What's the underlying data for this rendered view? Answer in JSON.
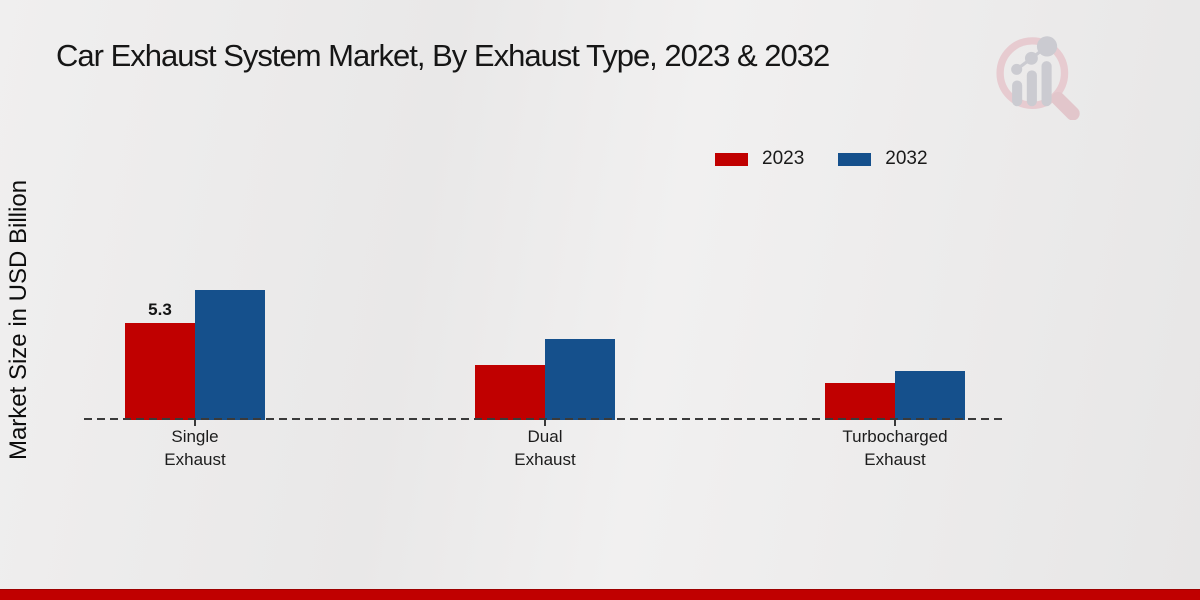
{
  "title": "Car Exhaust System Market, By Exhaust Type, 2023 & 2032",
  "ylabel": "Market Size in USD Billion",
  "legend": {
    "items": [
      {
        "label": "2023",
        "color": "#c00000"
      },
      {
        "label": "2032",
        "color": "#15508c"
      }
    ]
  },
  "colors": {
    "bar_2023": "#c00000",
    "bar_2032": "#15508c",
    "axis_dash": "#3a3a3a",
    "footer_bar": "#c00000",
    "watermark_ring": "#e7cbd0",
    "watermark_gray": "#cbcbd1"
  },
  "watermark_icon": "market-research-future-magnifier-logo",
  "chart_data": {
    "type": "bar",
    "title": "Car Exhaust System Market, By Exhaust Type, 2023 & 2032",
    "xlabel": "",
    "ylabel": "Market Size in USD Billion",
    "categories": [
      "Single Exhaust",
      "Dual Exhaust",
      "Turbocharged Exhaust"
    ],
    "category_label_lines": [
      [
        "Single",
        "Exhaust"
      ],
      [
        "Dual",
        "Exhaust"
      ],
      [
        "Turbocharged",
        "Exhaust"
      ]
    ],
    "series": [
      {
        "name": "2023",
        "color": "#c00000",
        "values": [
          5.3,
          3.0,
          2.0
        ]
      },
      {
        "name": "2032",
        "color": "#15508c",
        "values": [
          7.1,
          4.4,
          2.7
        ]
      }
    ],
    "annotations": [
      {
        "series": "2023",
        "category": "Single Exhaust",
        "text": "5.3"
      }
    ],
    "ylim": [
      0,
      8
    ],
    "grid": false,
    "legend_position": "top-right",
    "baseline_style": "dashed"
  }
}
